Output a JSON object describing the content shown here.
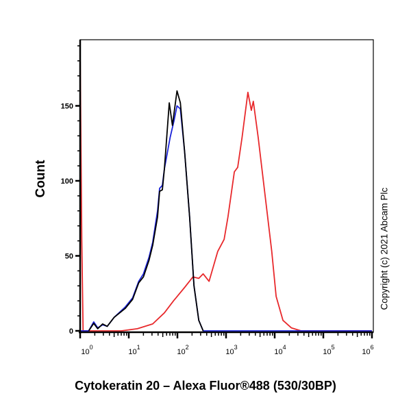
{
  "chart_data": {
    "type": "line",
    "title": "",
    "xlabel": "Cytokeratin 20 – Alexa Fluor®488 (530/30BP)",
    "ylabel": "Count",
    "xscale": "log",
    "xlim": [
      1,
      1000000
    ],
    "ylim": [
      0,
      194
    ],
    "x_ticks": [
      1,
      10,
      100,
      1000,
      10000,
      100000,
      1000000
    ],
    "x_tick_labels": [
      {
        "base": "10",
        "exp": "0"
      },
      {
        "base": "10",
        "exp": "1"
      },
      {
        "base": "10",
        "exp": "2"
      },
      {
        "base": "10",
        "exp": "3"
      },
      {
        "base": "10",
        "exp": "4"
      },
      {
        "base": "10",
        "exp": "5"
      },
      {
        "base": "10",
        "exp": "6"
      }
    ],
    "y_ticks": [
      0,
      50,
      100,
      150
    ],
    "grid": false,
    "legend": "none",
    "series": [
      {
        "color": "#e8282b",
        "points": [
          [
            1,
            187
          ],
          [
            1.08,
            60
          ],
          [
            1.15,
            0
          ],
          [
            7,
            0
          ],
          [
            15,
            1.4
          ],
          [
            31,
            4.6
          ],
          [
            54,
            12
          ],
          [
            83,
            20
          ],
          [
            141,
            29
          ],
          [
            209,
            36
          ],
          [
            275,
            35
          ],
          [
            339,
            38
          ],
          [
            447,
            33
          ],
          [
            676,
            53
          ],
          [
            912,
            61
          ],
          [
            1096,
            76
          ],
          [
            1479,
            106
          ],
          [
            1738,
            109
          ],
          [
            2138,
            129
          ],
          [
            2818,
            159
          ],
          [
            3311,
            147
          ],
          [
            3631,
            153
          ],
          [
            4571,
            129
          ],
          [
            6310,
            91
          ],
          [
            8710,
            53
          ],
          [
            10715,
            23
          ],
          [
            14791,
            7
          ],
          [
            22000,
            2
          ],
          [
            35000,
            0
          ],
          [
            1000000,
            0
          ]
        ]
      },
      {
        "color": "#1a22d8",
        "points": [
          [
            1,
            0
          ],
          [
            1.5,
            0
          ],
          [
            1.9,
            6
          ],
          [
            2.3,
            2
          ],
          [
            2.9,
            4
          ],
          [
            3.6,
            3
          ],
          [
            5,
            9
          ],
          [
            8.5,
            16
          ],
          [
            12,
            22
          ],
          [
            16,
            33
          ],
          [
            20,
            38
          ],
          [
            26,
            49
          ],
          [
            31,
            59
          ],
          [
            39,
            80
          ],
          [
            43,
            95
          ],
          [
            49,
            97
          ],
          [
            54,
            108
          ],
          [
            71,
            129
          ],
          [
            85,
            140
          ],
          [
            98,
            150
          ],
          [
            115,
            148
          ],
          [
            141,
            119
          ],
          [
            178,
            76
          ],
          [
            219,
            30
          ],
          [
            275,
            7
          ],
          [
            339,
            0
          ],
          [
            1000000,
            0
          ]
        ]
      },
      {
        "color": "#000000",
        "points": [
          [
            1.5,
            0
          ],
          [
            1.9,
            5
          ],
          [
            2.3,
            1.4
          ],
          [
            2.9,
            4.6
          ],
          [
            3.6,
            3
          ],
          [
            5,
            9
          ],
          [
            8.5,
            15
          ],
          [
            12,
            21
          ],
          [
            16,
            32
          ],
          [
            20,
            36
          ],
          [
            26,
            47
          ],
          [
            31,
            57
          ],
          [
            39,
            76
          ],
          [
            43,
            93
          ],
          [
            49,
            94
          ],
          [
            54,
            108
          ],
          [
            68,
            152
          ],
          [
            79,
            137
          ],
          [
            98,
            160
          ],
          [
            115,
            152
          ],
          [
            141,
            119
          ],
          [
            178,
            76
          ],
          [
            219,
            30
          ],
          [
            275,
            7
          ],
          [
            339,
            0
          ]
        ]
      }
    ]
  },
  "copyright": "Copyright (c) 2021 Abcam Plc"
}
